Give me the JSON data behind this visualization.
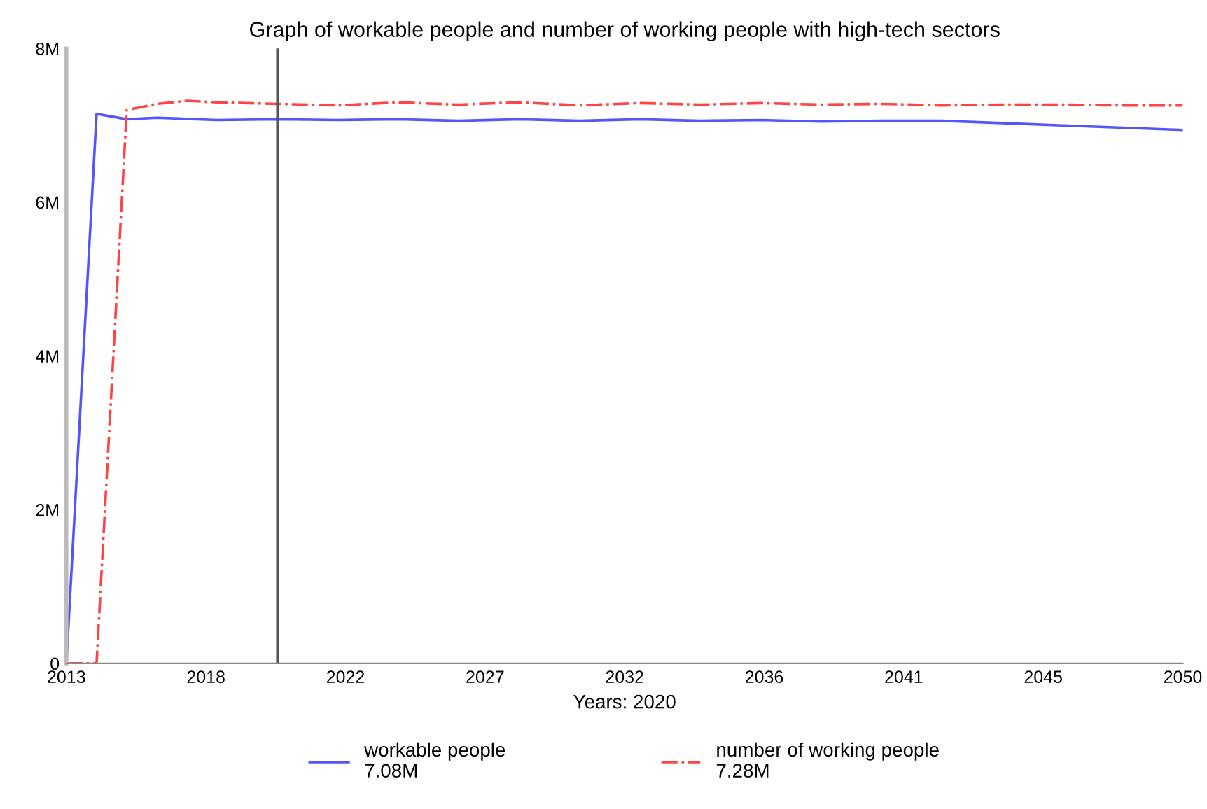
{
  "chart_data": {
    "type": "line",
    "title": "Graph of workable people and number of working people with high-tech sectors",
    "xlabel": "Years: 2020",
    "xlim": [
      2013,
      2050
    ],
    "xticks": [
      2013,
      {
        "value": 2017.625,
        "label": "2018"
      },
      {
        "value": 2022.25,
        "label": "2022"
      },
      {
        "value": 2026.875,
        "label": "2027"
      },
      {
        "value": 2031.5,
        "label": "2032"
      },
      {
        "value": 2036.125,
        "label": "2036"
      },
      {
        "value": 2040.75,
        "label": "2041"
      },
      {
        "value": 2045.375,
        "label": "2045"
      },
      2050
    ],
    "ylim": [
      0,
      8000000
    ],
    "yticks": [
      0,
      {
        "value": 2000000,
        "label": "2M"
      },
      {
        "value": 4000000,
        "label": "4M"
      },
      {
        "value": 6000000,
        "label": "6M"
      },
      {
        "value": 8000000,
        "label": "8M"
      }
    ],
    "ref_lines": [
      {
        "axis": "x",
        "value": 2020,
        "color": "#555555"
      }
    ],
    "legend": "bottom",
    "grid": false,
    "series": [
      {
        "name": "workable people\n7.08M",
        "color": "#5555ff",
        "line_style": "solid",
        "x": [
          2013,
          2014,
          2015,
          2016,
          2018,
          2020,
          2022,
          2024,
          2026,
          2028,
          2030,
          2032,
          2034,
          2036,
          2038,
          2040,
          2042,
          2044,
          2046,
          2048,
          2050
        ],
        "values": [
          0,
          7150000,
          7080000,
          7100000,
          7070000,
          7080000,
          7070000,
          7080000,
          7060000,
          7080000,
          7060000,
          7080000,
          7060000,
          7070000,
          7050000,
          7060000,
          7060000,
          7030000,
          7000000,
          6970000,
          6940000
        ]
      },
      {
        "name": "number of working people\n7.28M",
        "color": "#ff4444",
        "line_style": "dashdot",
        "x": [
          2013,
          2014,
          2015,
          2016,
          2017,
          2018,
          2020,
          2022,
          2024,
          2026,
          2028,
          2030,
          2032,
          2034,
          2036,
          2038,
          2040,
          2042,
          2044,
          2046,
          2048,
          2050
        ],
        "values": [
          0,
          0,
          7200000,
          7280000,
          7320000,
          7300000,
          7280000,
          7260000,
          7300000,
          7270000,
          7300000,
          7260000,
          7290000,
          7270000,
          7290000,
          7270000,
          7280000,
          7260000,
          7270000,
          7270000,
          7260000,
          7260000
        ]
      }
    ]
  }
}
